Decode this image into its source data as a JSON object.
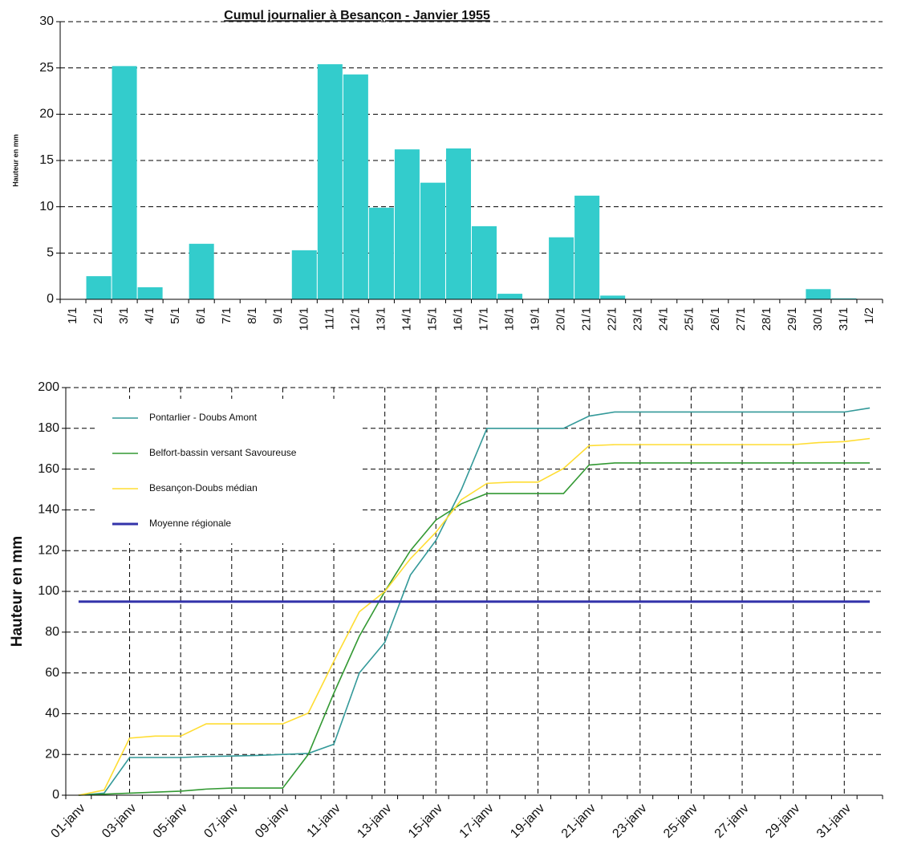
{
  "chart_data": [
    {
      "type": "bar",
      "title": "Cumul journalier à Besançon - Janvier 1955",
      "y_label": "Hauteur en mm",
      "categories": [
        "1/1",
        "2/1",
        "3/1",
        "4/1",
        "5/1",
        "6/1",
        "7/1",
        "8/1",
        "9/1",
        "10/1",
        "11/1",
        "12/1",
        "13/1",
        "14/1",
        "15/1",
        "16/1",
        "17/1",
        "18/1",
        "19/1",
        "20/1",
        "21/1",
        "22/1",
        "23/1",
        "24/1",
        "25/1",
        "26/1",
        "27/1",
        "28/1",
        "29/1",
        "30/1",
        "31/1",
        "1/2"
      ],
      "values": [
        0,
        2.5,
        25.2,
        1.3,
        0,
        6,
        0,
        0,
        0,
        5.3,
        25.4,
        24.3,
        9.9,
        16.2,
        12.6,
        16.3,
        7.9,
        0.6,
        0,
        6.7,
        11.2,
        0.4,
        0,
        0,
        0,
        0,
        0,
        0,
        0,
        1.1,
        0.1,
        0
      ],
      "color": "#33cccc",
      "ylim": [
        0,
        30
      ],
      "yticks": [
        0,
        5,
        10,
        15,
        20,
        25,
        30
      ],
      "grid": true
    },
    {
      "type": "line",
      "y_label": "Hauteur en mm",
      "categories": [
        "01-janv",
        null,
        "03-janv",
        null,
        "05-janv",
        null,
        "07-janv",
        null,
        "09-janv",
        null,
        "11-janv",
        null,
        "13-janv",
        null,
        "15-janv",
        null,
        "17-janv",
        null,
        "19-janv",
        null,
        "21-janv",
        null,
        "23-janv",
        null,
        "25-janv",
        null,
        "27-janv",
        null,
        "29-janv",
        null,
        "31-janv",
        null
      ],
      "series": [
        {
          "name": "Pontarlier - Doubs Amont",
          "color": "#339999",
          "values": [
            0,
            1,
            18.5,
            18.5,
            18.5,
            19,
            19.2,
            19.5,
            20,
            20.5,
            25,
            60,
            75,
            108,
            125,
            150,
            180,
            180,
            180,
            180,
            186,
            188,
            188,
            188,
            188,
            188,
            188,
            188,
            188,
            188,
            188,
            190
          ]
        },
        {
          "name": "Belfort-bassin versant Savoureuse",
          "color": "#339933",
          "values": [
            0,
            0.5,
            1,
            1.5,
            2,
            3,
            3.5,
            3.5,
            3.5,
            20,
            50,
            78,
            100,
            120,
            135,
            143,
            148,
            148,
            148,
            148,
            162,
            163,
            163,
            163,
            163,
            163,
            163,
            163,
            163,
            163,
            163,
            163
          ]
        },
        {
          "name": "Besançon-Doubs médian",
          "color": "#ffdd33",
          "values": [
            0,
            2.5,
            28,
            29,
            29,
            35,
            35,
            35,
            35,
            40.3,
            65.7,
            90,
            100,
            116,
            129,
            145,
            153,
            153.6,
            153.6,
            160.3,
            171.5,
            172,
            172,
            172,
            172,
            172,
            172,
            172,
            172,
            173,
            173.5,
            175
          ]
        },
        {
          "name": "Moyenne régionale",
          "color": "#3333aa",
          "values": [
            95,
            95,
            95,
            95,
            95,
            95,
            95,
            95,
            95,
            95,
            95,
            95,
            95,
            95,
            95,
            95,
            95,
            95,
            95,
            95,
            95,
            95,
            95,
            95,
            95,
            95,
            95,
            95,
            95,
            95,
            95,
            95
          ]
        }
      ],
      "ylim": [
        0,
        200
      ],
      "yticks": [
        0,
        20,
        40,
        60,
        80,
        100,
        120,
        140,
        160,
        180,
        200
      ],
      "grid": true,
      "xgrid": true,
      "legend": "upper left"
    }
  ]
}
